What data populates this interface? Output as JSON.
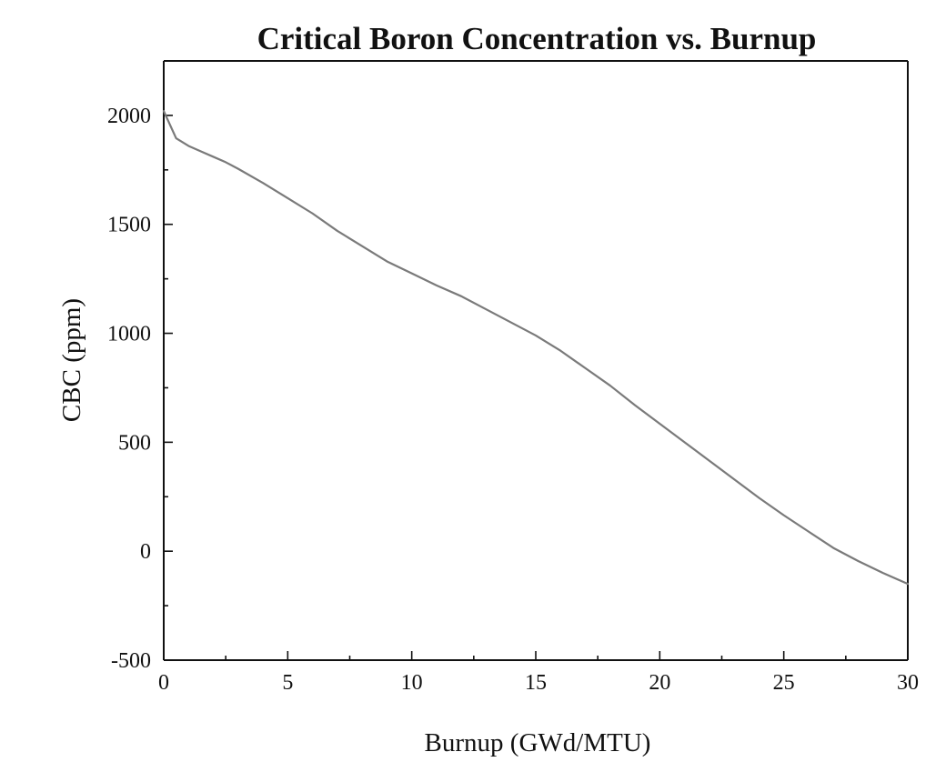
{
  "chart_data": {
    "type": "line",
    "title": "Critical Boron Concentration vs. Burnup",
    "xlabel": "Burnup (GWd/MTU)",
    "ylabel": "CBC (ppm)",
    "xlim": [
      0,
      30
    ],
    "ylim": [
      -500,
      2250
    ],
    "x_ticks": [
      0,
      5,
      10,
      15,
      20,
      25,
      30
    ],
    "y_ticks": [
      -500,
      0,
      500,
      1000,
      1500,
      2000
    ],
    "x_minor_step": 2.5,
    "y_minor_step": 250,
    "grid": false,
    "line_color": "#7a7a7a",
    "series": [
      {
        "x": [
          0,
          0.5,
          1,
          1.5,
          2,
          2.5,
          3,
          4,
          5,
          6,
          7,
          8,
          9,
          10,
          11,
          12,
          13,
          14,
          15,
          16,
          17,
          18,
          19,
          20,
          21,
          22,
          23,
          24,
          25,
          26,
          27,
          28,
          29,
          30
        ],
        "y": [
          2020,
          1895,
          1860,
          1835,
          1810,
          1785,
          1755,
          1690,
          1620,
          1550,
          1470,
          1400,
          1330,
          1275,
          1220,
          1170,
          1110,
          1050,
          990,
          920,
          840,
          760,
          670,
          585,
          500,
          415,
          330,
          245,
          165,
          90,
          15,
          -45,
          -100,
          -150
        ]
      }
    ]
  }
}
